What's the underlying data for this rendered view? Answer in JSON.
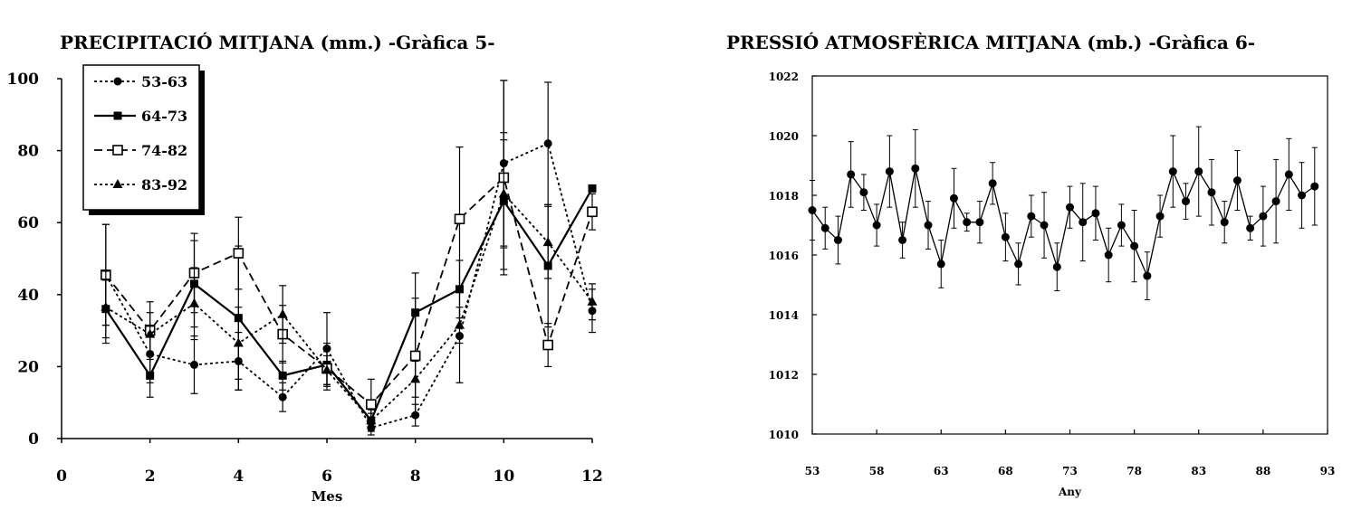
{
  "chart_data": [
    {
      "type": "line",
      "title": "PRECIPITACIÓ MITJANA (mm.) -Gràfica 5-",
      "xlabel": "Mes",
      "ylabel": "",
      "xlim": [
        0,
        12
      ],
      "ylim": [
        0,
        100
      ],
      "xticks": [
        0,
        2,
        4,
        6,
        8,
        10,
        12
      ],
      "yticks": [
        0,
        20,
        40,
        60,
        80,
        100
      ],
      "x": [
        1,
        2,
        3,
        4,
        5,
        6,
        7,
        8,
        9,
        10,
        11,
        12
      ],
      "legend_position": "top-left",
      "series": [
        {
          "name": "53-63",
          "style": "dotted",
          "marker": "circle",
          "values": [
            45.5,
            23.5,
            20.5,
            21.5,
            11.5,
            25,
            3,
            6.5,
            28.5,
            76.5,
            82,
            35.5
          ],
          "err": [
            14,
            8,
            8,
            8,
            4,
            10,
            2,
            3,
            13,
            23,
            17,
            6
          ]
        },
        {
          "name": "64-73",
          "style": "solid",
          "marker": "filled-square",
          "values": [
            36,
            17.5,
            43,
            33.5,
            17.5,
            20.5,
            5,
            35,
            41.5,
            66,
            48,
            69.5
          ],
          "err": [
            8,
            6,
            12,
            20,
            4,
            6,
            2,
            11,
            8,
            19,
            17,
            0
          ]
        },
        {
          "name": "74-82",
          "style": "dashed",
          "marker": "open-square",
          "values": [
            45.5,
            30,
            46,
            51.5,
            29,
            19.5,
            9.5,
            23,
            61,
            72.5,
            26,
            63
          ],
          "err": [
            14,
            8,
            11,
            10,
            8,
            6,
            7,
            16,
            20,
            27,
            6,
            5
          ]
        },
        {
          "name": "83-92",
          "style": "dotted",
          "marker": "triangle",
          "values": [
            36.5,
            29,
            37.5,
            26.5,
            34.5,
            19,
            5,
            16.5,
            31.5,
            68,
            54.5,
            38
          ],
          "err": [
            10,
            6,
            10,
            10,
            8,
            4,
            3,
            5,
            5,
            15,
            10,
            5
          ]
        }
      ]
    },
    {
      "type": "line",
      "title": "PRESSIÓ ATMOSFÈRICA MITJANA (mb.) -Gràfica 6-",
      "xlabel": "Any",
      "ylabel": "",
      "xlim": [
        53,
        93
      ],
      "ylim": [
        1010,
        1022
      ],
      "xticks": [
        53,
        58,
        63,
        68,
        73,
        78,
        83,
        88,
        93
      ],
      "yticks": [
        1010,
        1012,
        1014,
        1016,
        1018,
        1020,
        1022
      ],
      "x": [
        53,
        54,
        55,
        56,
        57,
        58,
        59,
        60,
        61,
        62,
        63,
        64,
        65,
        66,
        67,
        68,
        69,
        70,
        71,
        72,
        73,
        74,
        75,
        76,
        77,
        78,
        79,
        80,
        81,
        82,
        83,
        84,
        85,
        86,
        87,
        88,
        89,
        90,
        91,
        92
      ],
      "series": [
        {
          "name": "",
          "style": "solid",
          "marker": "circle",
          "values": [
            1017.5,
            1016.9,
            1016.5,
            1018.7,
            1018.1,
            1017.0,
            1018.8,
            1016.5,
            1018.9,
            1017.0,
            1015.7,
            1017.9,
            1017.1,
            1017.1,
            1018.4,
            1016.6,
            1015.7,
            1017.3,
            1017.0,
            1015.6,
            1017.6,
            1017.1,
            1017.4,
            1016.0,
            1017.0,
            1016.3,
            1015.3,
            1017.3,
            1018.8,
            1017.8,
            1018.8,
            1018.1,
            1017.1,
            1018.5,
            1016.9,
            1017.3,
            1017.8,
            1018.7,
            1018.0,
            1018.3
          ],
          "err": [
            1.0,
            0.7,
            0.8,
            1.1,
            0.6,
            0.7,
            1.2,
            0.6,
            1.3,
            0.8,
            0.8,
            1.0,
            0.3,
            0.7,
            0.7,
            0.8,
            0.7,
            0.7,
            1.1,
            0.8,
            0.7,
            1.3,
            0.9,
            0.9,
            0.7,
            1.2,
            0.8,
            0.7,
            1.2,
            0.6,
            1.5,
            1.1,
            0.7,
            1.0,
            0.4,
            1.0,
            1.4,
            1.2,
            1.1,
            1.3
          ]
        }
      ]
    }
  ]
}
